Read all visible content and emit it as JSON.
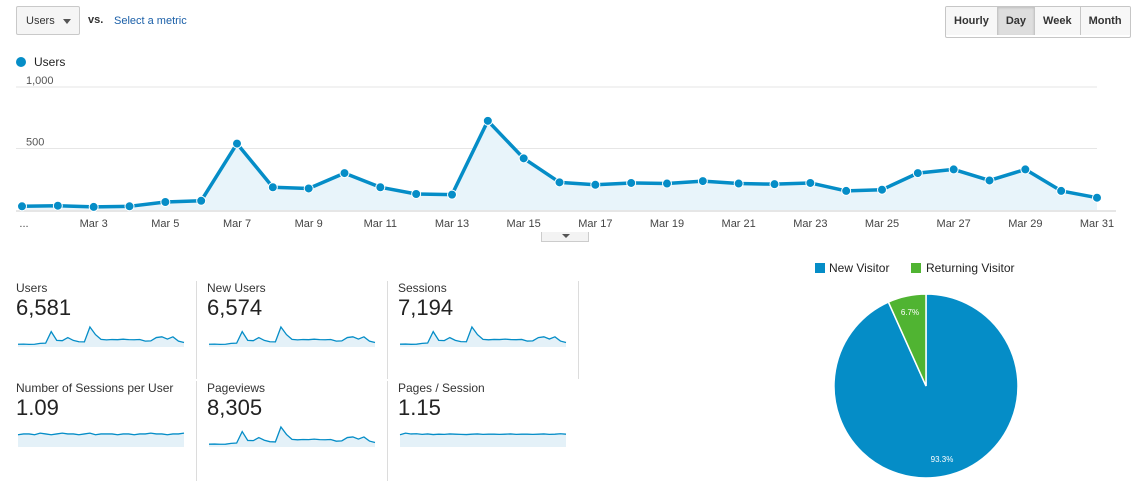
{
  "toolbar": {
    "metric_select": "Users",
    "vs": "vs.",
    "select_metric": "Select a metric",
    "periods": [
      "Hourly",
      "Day",
      "Week",
      "Month"
    ],
    "active_period": "Day"
  },
  "legend": {
    "label": "Users",
    "color": "#058dc7"
  },
  "chart_data": [
    {
      "type": "area",
      "series": [
        {
          "name": "Users",
          "values": [
            30,
            35,
            25,
            30,
            65,
            75,
            540,
            185,
            175,
            300,
            185,
            130,
            125,
            725,
            420,
            225,
            205,
            220,
            215,
            235,
            215,
            210,
            220,
            155,
            165,
            300,
            330,
            240,
            330,
            155,
            100
          ]
        }
      ],
      "x": [
        "Mar 1",
        "Mar 2",
        "Mar 3",
        "Mar 4",
        "Mar 5",
        "Mar 6",
        "Mar 7",
        "Mar 8",
        "Mar 9",
        "Mar 10",
        "Mar 11",
        "Mar 12",
        "Mar 13",
        "Mar 14",
        "Mar 15",
        "Mar 16",
        "Mar 17",
        "Mar 18",
        "Mar 19",
        "Mar 20",
        "Mar 21",
        "Mar 22",
        "Mar 23",
        "Mar 24",
        "Mar 25",
        "Mar 26",
        "Mar 27",
        "Mar 28",
        "Mar 29",
        "Mar 30",
        "Mar 31"
      ],
      "x_tick_labels": [
        "...",
        "Mar 3",
        "Mar 5",
        "Mar 7",
        "Mar 9",
        "Mar 11",
        "Mar 13",
        "Mar 15",
        "Mar 17",
        "Mar 19",
        "Mar 21",
        "Mar 23",
        "Mar 25",
        "Mar 27",
        "Mar 29",
        "Mar 31"
      ],
      "y_tick_labels": [
        "1,000",
        "500"
      ],
      "ylim": [
        0,
        1000
      ],
      "grid": true,
      "color": "#058dc7"
    },
    {
      "type": "pie",
      "labels": [
        "New Visitor",
        "Returning Visitor"
      ],
      "values": [
        93.3,
        6.7
      ],
      "data_labels": [
        "93.3%",
        "6.7%"
      ],
      "colors": [
        "#058dc7",
        "#50b432"
      ],
      "legend": "top"
    }
  ],
  "scorecards": [
    {
      "title": "Users",
      "value": "6,581",
      "spark": [
        30,
        35,
        25,
        30,
        65,
        75,
        540,
        185,
        175,
        300,
        185,
        130,
        125,
        725,
        420,
        225,
        205,
        220,
        215,
        235,
        215,
        210,
        220,
        155,
        165,
        300,
        330,
        240,
        330,
        155,
        100
      ]
    },
    {
      "title": "New Users",
      "value": "6,574",
      "spark": [
        30,
        35,
        25,
        30,
        65,
        75,
        540,
        185,
        175,
        300,
        185,
        130,
        125,
        725,
        420,
        225,
        205,
        220,
        215,
        235,
        215,
        210,
        220,
        155,
        165,
        300,
        330,
        240,
        330,
        155,
        100
      ]
    },
    {
      "title": "Sessions",
      "value": "7,194",
      "spark": [
        35,
        40,
        30,
        35,
        70,
        85,
        580,
        200,
        190,
        320,
        200,
        145,
        140,
        780,
        450,
        245,
        225,
        240,
        235,
        255,
        235,
        230,
        240,
        170,
        180,
        320,
        355,
        260,
        355,
        170,
        110
      ]
    },
    {
      "title": "Number of Sessions per User",
      "value": "1.09",
      "spark": [
        1.08,
        1.09,
        1.09,
        1.08,
        1.1,
        1.09,
        1.08,
        1.09,
        1.1,
        1.09,
        1.09,
        1.08,
        1.09,
        1.1,
        1.08,
        1.09,
        1.09,
        1.09,
        1.08,
        1.09,
        1.09,
        1.08,
        1.09,
        1.09,
        1.1,
        1.09,
        1.09,
        1.08,
        1.09,
        1.09,
        1.1
      ]
    },
    {
      "title": "Pageviews",
      "value": "8,305",
      "spark": [
        40,
        45,
        35,
        40,
        80,
        95,
        650,
        220,
        210,
        360,
        230,
        160,
        150,
        870,
        510,
        270,
        250,
        265,
        260,
        285,
        260,
        255,
        265,
        185,
        200,
        360,
        390,
        285,
        390,
        190,
        120
      ]
    },
    {
      "title": "Pages / Session",
      "value": "1.15",
      "spark": [
        1.12,
        1.2,
        1.16,
        1.17,
        1.14,
        1.16,
        1.13,
        1.15,
        1.14,
        1.16,
        1.15,
        1.14,
        1.13,
        1.15,
        1.16,
        1.14,
        1.15,
        1.15,
        1.14,
        1.15,
        1.16,
        1.14,
        1.15,
        1.15,
        1.14,
        1.15,
        1.16,
        1.14,
        1.15,
        1.17,
        1.15
      ]
    }
  ]
}
